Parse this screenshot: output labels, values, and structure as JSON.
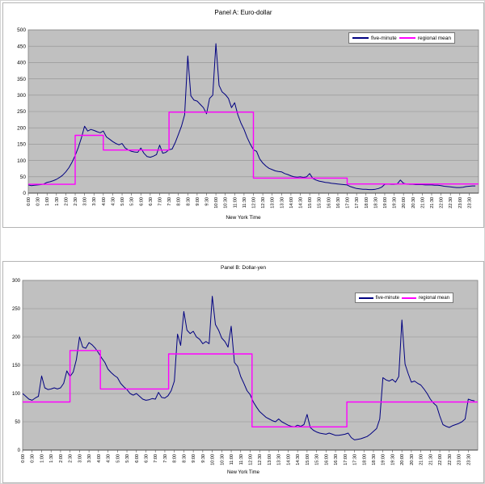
{
  "chart_data": [
    {
      "type": "line",
      "panel": "A",
      "title": "Panel A: Euro-dollar",
      "xlabel": "New York Time",
      "grid": true,
      "legend_position": "top-right",
      "plot_bg": "#C0C0C0",
      "gridline_color": "#8f8f8f",
      "ylim": [
        0,
        500
      ],
      "ytick_step": 50,
      "y_ticks": [
        0,
        50,
        100,
        150,
        200,
        250,
        300,
        350,
        400,
        450,
        500
      ],
      "x_categories": [
        "0:00",
        "0:30",
        "1:00",
        "1:30",
        "2:00",
        "2:30",
        "3:00",
        "3:30",
        "4:00",
        "4:30",
        "5:00",
        "5:30",
        "6:00",
        "6:30",
        "7:00",
        "7:30",
        "8:00",
        "8:30",
        "9:00",
        "9:30",
        "10:00",
        "10:30",
        "11:00",
        "11:30",
        "12:00",
        "12:30",
        "13:00",
        "13:30",
        "14:00",
        "14:30",
        "15:00",
        "15:30",
        "16:00",
        "16:30",
        "17:00",
        "17:30",
        "18:00",
        "18:30",
        "19:00",
        "19:30",
        "20:00",
        "20:30",
        "21:00",
        "21:30",
        "22:00",
        "22:30",
        "23:00",
        "23:30"
      ],
      "series": [
        {
          "name": "five-minute",
          "color": "#000080",
          "x_start_hour": 0,
          "x_step_minutes": 10,
          "values": [
            25,
            23,
            24,
            25,
            26,
            28,
            33,
            35,
            38,
            42,
            48,
            55,
            65,
            78,
            95,
            115,
            140,
            170,
            205,
            190,
            195,
            192,
            188,
            185,
            190,
            172,
            165,
            158,
            152,
            148,
            152,
            138,
            132,
            128,
            126,
            125,
            138,
            122,
            112,
            110,
            113,
            118,
            147,
            122,
            125,
            133,
            135,
            155,
            180,
            205,
            240,
            420,
            298,
            285,
            282,
            272,
            262,
            243,
            290,
            300,
            458,
            330,
            310,
            302,
            290,
            262,
            277,
            240,
            215,
            195,
            170,
            150,
            133,
            128,
            105,
            92,
            83,
            76,
            72,
            68,
            66,
            65,
            60,
            57,
            53,
            50,
            49,
            50,
            48,
            50,
            60,
            45,
            40,
            37,
            35,
            33,
            32,
            30,
            29,
            28,
            27,
            26,
            25,
            20,
            17,
            14,
            13,
            12,
            12,
            11,
            11,
            12,
            14,
            18,
            27,
            28,
            27,
            27,
            28,
            40,
            30,
            28,
            27,
            27,
            26,
            26,
            26,
            25,
            25,
            25,
            24,
            24,
            23,
            21,
            20,
            19,
            18,
            17,
            17,
            18,
            20,
            21,
            22,
            22
          ]
        },
        {
          "name": "regional mean",
          "color": "#FF00FF",
          "style": "step",
          "steps": [
            {
              "start_hour": 0,
              "end_hour": 2.5,
              "value": 27
            },
            {
              "start_hour": 2.5,
              "end_hour": 4.0,
              "value": 177
            },
            {
              "start_hour": 4.0,
              "end_hour": 7.5,
              "value": 132
            },
            {
              "start_hour": 7.5,
              "end_hour": 12.0,
              "value": 248
            },
            {
              "start_hour": 12.0,
              "end_hour": 17.0,
              "value": 46
            },
            {
              "start_hour": 17.0,
              "end_hour": 24.0,
              "value": 28
            }
          ]
        }
      ]
    },
    {
      "type": "line",
      "panel": "B",
      "title": "Panel B: Dollar-yen",
      "xlabel": "New York Time",
      "grid": true,
      "legend_position": "top-right",
      "plot_bg": "#C0C0C0",
      "gridline_color": "#8f8f8f",
      "ylim": [
        0,
        300
      ],
      "ytick_step": 50,
      "y_ticks": [
        0,
        50,
        100,
        150,
        200,
        250,
        300
      ],
      "x_categories": [
        "0:00",
        "0:30",
        "1:00",
        "1:30",
        "2:00",
        "2:30",
        "3:00",
        "3:30",
        "4:00",
        "4:30",
        "5:00",
        "5:30",
        "6:00",
        "6:30",
        "7:00",
        "7:30",
        "8:00",
        "8:30",
        "9:00",
        "9:30",
        "10:00",
        "10:30",
        "11:00",
        "11:30",
        "12:00",
        "12:30",
        "13:00",
        "13:30",
        "14:00",
        "14:30",
        "15:00",
        "15:30",
        "16:00",
        "16:30",
        "17:00",
        "17:30",
        "18:00",
        "18:30",
        "19:00",
        "19:30",
        "20:00",
        "20:30",
        "21:00",
        "21:30",
        "22:00",
        "22:30",
        "23:00",
        "23:30"
      ],
      "series": [
        {
          "name": "five-minute",
          "color": "#000080",
          "x_start_hour": 0,
          "x_step_minutes": 10,
          "values": [
            100,
            95,
            90,
            88,
            92,
            95,
            131,
            110,
            107,
            108,
            110,
            108,
            110,
            118,
            140,
            130,
            138,
            160,
            200,
            182,
            180,
            190,
            186,
            180,
            172,
            163,
            155,
            143,
            137,
            132,
            128,
            118,
            112,
            107,
            100,
            97,
            100,
            95,
            90,
            88,
            89,
            91,
            90,
            102,
            93,
            92,
            96,
            105,
            122,
            205,
            185,
            245,
            212,
            206,
            210,
            200,
            196,
            188,
            192,
            188,
            272,
            222,
            212,
            198,
            192,
            182,
            219,
            155,
            148,
            130,
            118,
            105,
            98,
            85,
            76,
            68,
            63,
            58,
            55,
            52,
            50,
            55,
            50,
            47,
            44,
            42,
            41,
            44,
            42,
            45,
            63,
            40,
            35,
            32,
            30,
            29,
            28,
            30,
            28,
            26,
            26,
            27,
            28,
            30,
            22,
            18,
            19,
            20,
            22,
            24,
            28,
            33,
            38,
            55,
            128,
            124,
            122,
            125,
            120,
            130,
            230,
            152,
            135,
            120,
            122,
            118,
            115,
            108,
            100,
            90,
            83,
            78,
            60,
            45,
            42,
            40,
            43,
            45,
            47,
            50,
            55,
            90,
            88,
            87
          ]
        },
        {
          "name": "regional mean",
          "color": "#FF00FF",
          "style": "step",
          "steps": [
            {
              "start_hour": 0,
              "end_hour": 2.5,
              "value": 85
            },
            {
              "start_hour": 2.5,
              "end_hour": 4.1,
              "value": 176
            },
            {
              "start_hour": 4.1,
              "end_hour": 7.7,
              "value": 108
            },
            {
              "start_hour": 7.7,
              "end_hour": 12.1,
              "value": 170
            },
            {
              "start_hour": 12.1,
              "end_hour": 17.1,
              "value": 41
            },
            {
              "start_hour": 17.1,
              "end_hour": 24.0,
              "value": 85
            }
          ]
        }
      ]
    }
  ]
}
